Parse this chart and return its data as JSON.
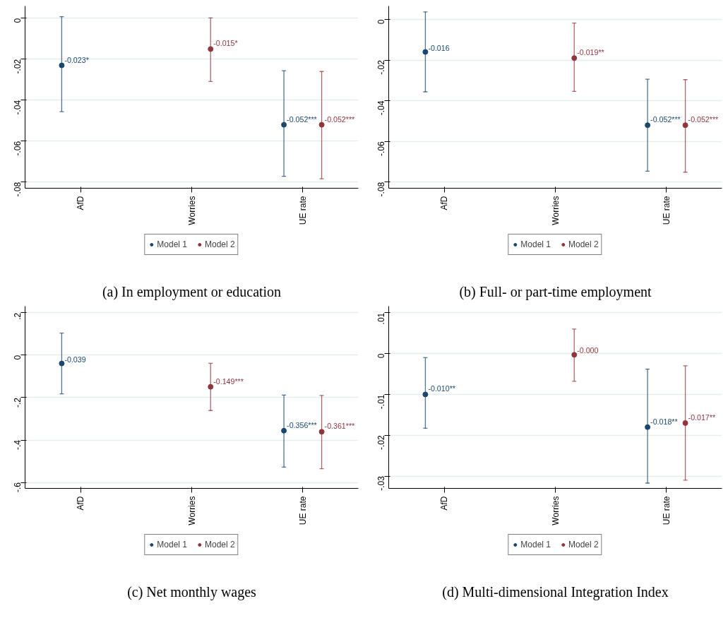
{
  "chart_data": [
    {
      "type": "scatter",
      "title": "(a) In employment or education",
      "categories": [
        "AfD",
        "Worries",
        "UE rate"
      ],
      "series": [
        {
          "name": "Model 1",
          "color": "#1a476f",
          "values": [
            -0.023,
            null,
            -0.052
          ],
          "errors": [
            [
              -0.0456,
              0.0008
            ],
            null,
            [
              -0.0772,
              -0.0256
            ]
          ],
          "value_labels": [
            "-0.023*",
            null,
            "-0.052***"
          ]
        },
        {
          "name": "Model 2",
          "color": "#90353b",
          "values": [
            null,
            -0.015,
            -0.052
          ],
          "errors": [
            null,
            [
              -0.0309,
              0.0002
            ],
            [
              -0.0784,
              -0.026
            ]
          ],
          "value_labels": [
            null,
            "-0.015*",
            "-0.052***"
          ]
        }
      ],
      "ylim": [
        -0.083,
        0.006
      ],
      "yticks": [
        {
          "value": -0.08,
          "label": "-.08"
        },
        {
          "value": -0.06,
          "label": "-.06"
        },
        {
          "value": -0.04,
          "label": "-.04"
        },
        {
          "value": -0.02,
          "label": "-.02"
        },
        0
      ],
      "grid": "y",
      "legend": "bottom",
      "marker": "circle"
    },
    {
      "type": "scatter",
      "title": "(b) Full- or part-time employment",
      "categories": [
        "AfD",
        "Worries",
        "UE rate"
      ],
      "series": [
        {
          "name": "Model 1",
          "color": "#1a476f",
          "values": [
            -0.016,
            null,
            -0.052
          ],
          "errors": [
            [
              -0.0356,
              0.0037
            ],
            null,
            [
              -0.0746,
              -0.0294
            ]
          ],
          "value_labels": [
            "-0.016",
            null,
            "-0.052***"
          ]
        },
        {
          "name": "Model 2",
          "color": "#90353b",
          "values": [
            null,
            -0.019,
            -0.052
          ],
          "errors": [
            null,
            [
              -0.0354,
              -0.0018
            ],
            [
              -0.0751,
              -0.0296
            ]
          ],
          "value_labels": [
            null,
            "-0.019**",
            "-0.052***"
          ]
        }
      ],
      "ylim": [
        -0.083,
        0.0066
      ],
      "yticks": [
        {
          "value": -0.08,
          "label": "-.08"
        },
        {
          "value": -0.06,
          "label": "-.06"
        },
        {
          "value": -0.04,
          "label": "-.04"
        },
        {
          "value": -0.02,
          "label": "-.02"
        },
        0
      ],
      "grid": "y",
      "legend": "bottom",
      "marker": "circle"
    },
    {
      "type": "scatter",
      "title": "(c) Net monthly wages",
      "categories": [
        "AfD",
        "Worries",
        "UE rate"
      ],
      "series": [
        {
          "name": "Model 1",
          "color": "#1a476f",
          "values": [
            -0.039,
            null,
            -0.356
          ],
          "errors": [
            [
              -0.182,
              0.104
            ],
            null,
            [
              -0.528,
              -0.188
            ]
          ],
          "value_labels": [
            "-0.039",
            null,
            "-0.356***"
          ]
        },
        {
          "name": "Model 2",
          "color": "#90353b",
          "values": [
            null,
            -0.149,
            -0.361
          ],
          "errors": [
            null,
            [
              -0.261,
              -0.038
            ],
            [
              -0.535,
              -0.19
            ]
          ],
          "value_labels": [
            null,
            "-0.149***",
            "-0.361***"
          ]
        }
      ],
      "ylim": [
        -0.628,
        0.231
      ],
      "yticks": [
        {
          "value": -0.6,
          "label": "-.6"
        },
        {
          "value": -0.4,
          "label": "-.4"
        },
        {
          "value": -0.2,
          "label": "-.2"
        },
        0,
        {
          "value": 0.2,
          "label": ".2"
        }
      ],
      "grid": "y",
      "legend": "bottom",
      "marker": "circle"
    },
    {
      "type": "scatter",
      "title": "(d) Multi-dimensional Integration Index",
      "categories": [
        "AfD",
        "Worries",
        "UE rate"
      ],
      "series": [
        {
          "name": "Model 1",
          "color": "#1a476f",
          "values": [
            -0.01,
            null,
            -0.018
          ],
          "errors": [
            [
              -0.0183,
              -0.001
            ],
            null,
            [
              -0.0317,
              -0.0038
            ]
          ],
          "value_labels": [
            "-0.010**",
            null,
            "-0.018**"
          ]
        },
        {
          "name": "Model 2",
          "color": "#90353b",
          "values": [
            null,
            -0.0003,
            -0.017
          ],
          "errors": [
            null,
            [
              -0.0068,
              0.006
            ],
            [
              -0.031,
              -0.003
            ]
          ],
          "value_labels": [
            null,
            "-0.000",
            "-0.017**"
          ]
        }
      ],
      "ylim": [
        -0.033,
        0.0116
      ],
      "yticks": [
        {
          "value": -0.03,
          "label": "-.03"
        },
        {
          "value": -0.02,
          "label": "-.02"
        },
        {
          "value": -0.01,
          "label": "-.01"
        },
        0,
        {
          "value": 0.01,
          "label": ".01"
        }
      ],
      "grid": "y",
      "legend": "bottom",
      "marker": "circle"
    }
  ]
}
